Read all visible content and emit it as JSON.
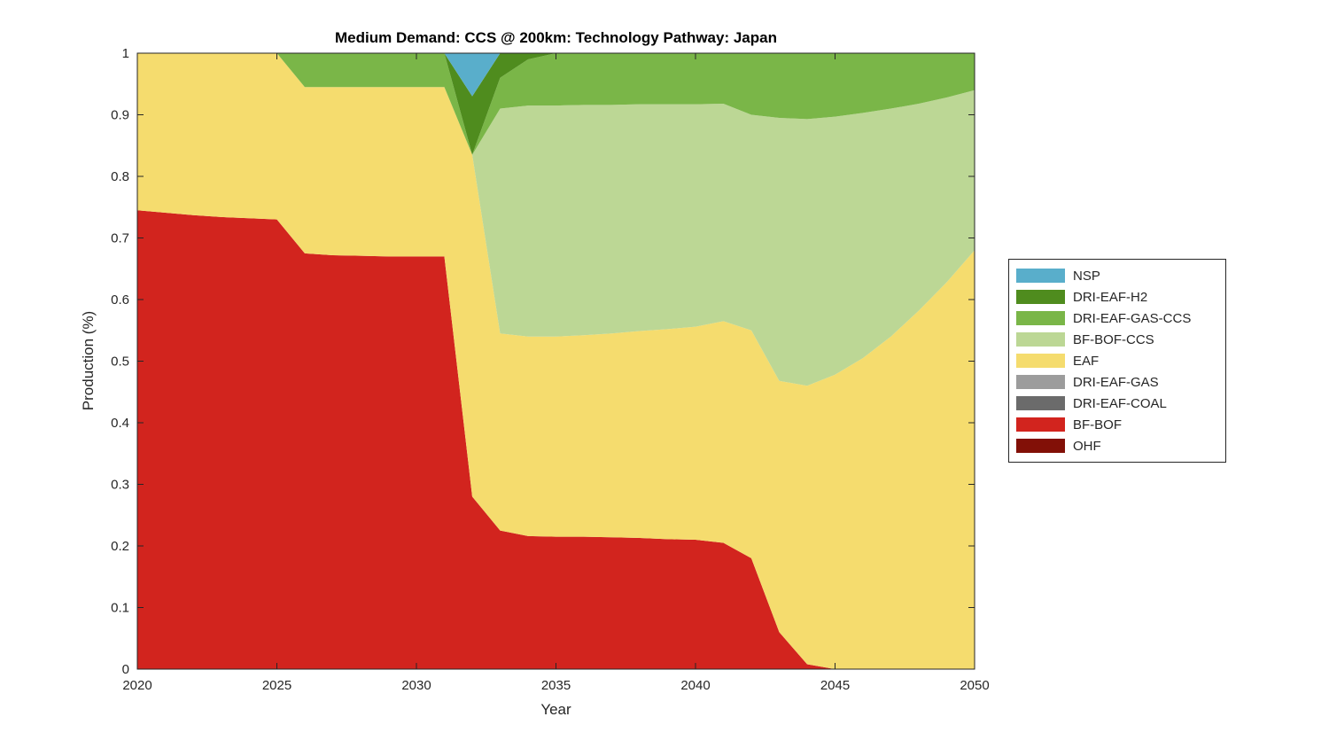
{
  "chart_data": {
    "type": "area",
    "stacked": true,
    "title": "Medium Demand: CCS @ 200km: Technology Pathway: Japan",
    "xlabel": "Year",
    "ylabel": "Production (%)",
    "xlim": [
      2020,
      2050
    ],
    "ylim": [
      0,
      1
    ],
    "xticks": [
      2020,
      2025,
      2030,
      2035,
      2040,
      2045,
      2050
    ],
    "yticks": [
      0,
      0.1,
      0.2,
      0.3,
      0.4,
      0.5,
      0.6,
      0.7,
      0.8,
      0.9,
      1
    ],
    "ytick_labels": [
      "0",
      "0.1",
      "0.2",
      "0.3",
      "0.4",
      "0.5",
      "0.6",
      "0.7",
      "0.8",
      "0.9",
      "1"
    ],
    "grid": false,
    "axis_color": "#262626",
    "background_color": "#ffffff",
    "legend_position": "right-outside",
    "legend_order_top_to_bottom": [
      "NSP",
      "DRI-EAF-H2",
      "DRI-EAF-GAS-CCS",
      "BF-BOF-CCS",
      "EAF",
      "DRI-EAF-GAS",
      "DRI-EAF-COAL",
      "BF-BOF",
      "OHF"
    ],
    "x": [
      2020,
      2021,
      2022,
      2023,
      2024,
      2025,
      2026,
      2027,
      2028,
      2029,
      2030,
      2031,
      2032,
      2033,
      2034,
      2035,
      2036,
      2037,
      2038,
      2039,
      2040,
      2041,
      2042,
      2043,
      2044,
      2045,
      2046,
      2047,
      2048,
      2049,
      2050
    ],
    "series": [
      {
        "name": "OHF",
        "color": "#821007",
        "values": [
          0,
          0,
          0,
          0,
          0,
          0,
          0,
          0,
          0,
          0,
          0,
          0,
          0,
          0,
          0,
          0,
          0,
          0,
          0,
          0,
          0,
          0,
          0,
          0,
          0,
          0,
          0,
          0,
          0,
          0,
          0
        ]
      },
      {
        "name": "BF-BOF",
        "color": "#D2241E",
        "values": [
          0.745,
          0.741,
          0.737,
          0.734,
          0.732,
          0.73,
          0.675,
          0.672,
          0.671,
          0.67,
          0.67,
          0.67,
          0.28,
          0.225,
          0.216,
          0.215,
          0.215,
          0.214,
          0.213,
          0.211,
          0.21,
          0.205,
          0.18,
          0.06,
          0.008,
          0,
          0,
          0,
          0,
          0,
          0
        ]
      },
      {
        "name": "DRI-EAF-COAL",
        "color": "#6B6B6B",
        "values": [
          0,
          0,
          0,
          0,
          0,
          0,
          0,
          0,
          0,
          0,
          0,
          0,
          0,
          0,
          0,
          0,
          0,
          0,
          0,
          0,
          0,
          0,
          0,
          0,
          0,
          0,
          0,
          0,
          0,
          0,
          0
        ]
      },
      {
        "name": "DRI-EAF-GAS",
        "color": "#9C9C9C",
        "values": [
          0,
          0,
          0,
          0,
          0,
          0,
          0,
          0,
          0,
          0,
          0,
          0,
          0,
          0,
          0,
          0,
          0,
          0,
          0,
          0,
          0,
          0,
          0,
          0,
          0,
          0,
          0,
          0,
          0,
          0,
          0
        ]
      },
      {
        "name": "EAF",
        "color": "#F5DC6E",
        "values": [
          0.255,
          0.259,
          0.263,
          0.266,
          0.268,
          0.27,
          0.27,
          0.273,
          0.274,
          0.275,
          0.275,
          0.275,
          0.555,
          0.32,
          0.324,
          0.325,
          0.327,
          0.331,
          0.336,
          0.341,
          0.346,
          0.36,
          0.37,
          0.408,
          0.452,
          0.478,
          0.505,
          0.54,
          0.582,
          0.628,
          0.68
        ]
      },
      {
        "name": "BF-BOF-CCS",
        "color": "#BCD795",
        "values": [
          0,
          0,
          0,
          0,
          0,
          0,
          0,
          0,
          0,
          0,
          0,
          0,
          0,
          0.365,
          0.375,
          0.375,
          0.374,
          0.371,
          0.368,
          0.365,
          0.361,
          0.353,
          0.35,
          0.427,
          0.433,
          0.419,
          0.398,
          0.37,
          0.336,
          0.3,
          0.26
        ]
      },
      {
        "name": "DRI-EAF-GAS-CCS",
        "color": "#7AB648",
        "values": [
          0,
          0,
          0,
          0,
          0,
          0,
          0.055,
          0.055,
          0.055,
          0.055,
          0.055,
          0.055,
          0,
          0.05,
          0.075,
          0.085,
          0.084,
          0.084,
          0.083,
          0.083,
          0.083,
          0.082,
          0.1,
          0.105,
          0.107,
          0.103,
          0.097,
          0.09,
          0.082,
          0.072,
          0.06
        ]
      },
      {
        "name": "DRI-EAF-H2",
        "color": "#4F8C1E",
        "values": [
          0,
          0,
          0,
          0,
          0,
          0,
          0,
          0,
          0,
          0,
          0,
          0,
          0.095,
          0.04,
          0.01,
          0,
          0,
          0,
          0,
          0,
          0,
          0,
          0,
          0,
          0,
          0,
          0,
          0,
          0,
          0,
          0
        ]
      },
      {
        "name": "NSP",
        "color": "#59AECB",
        "values": [
          0,
          0,
          0,
          0,
          0,
          0,
          0,
          0,
          0,
          0,
          0,
          0,
          0.07,
          0,
          0,
          0,
          0,
          0,
          0,
          0,
          0,
          0,
          0,
          0,
          0,
          0,
          0,
          0,
          0,
          0,
          0
        ]
      }
    ]
  }
}
